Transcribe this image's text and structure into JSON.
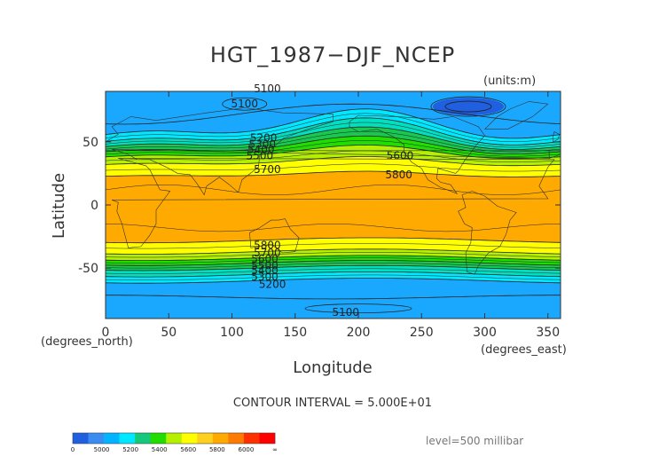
{
  "chart_data": {
    "type": "heatmap",
    "title": "HGT_1987−DJF_NCEP",
    "units": "(units:m)",
    "xlabel": "Longitude",
    "ylabel": "Latitude",
    "x_units": "(degrees_east)",
    "y_units": "(degrees_north)",
    "xlim": [
      0,
      360
    ],
    "ylim": [
      -90,
      90
    ],
    "x_ticks": [
      0,
      50,
      100,
      150,
      200,
      250,
      300,
      350
    ],
    "y_ticks": [
      50,
      0,
      -50
    ],
    "contour_interval_text": "CONTOUR INTERVAL = 5.000E+01",
    "level_text": "level=500 millibar",
    "contour_labels": [
      {
        "text": "5100",
        "lon": 128,
        "lat": 92
      },
      {
        "text": "5100",
        "lon": 110,
        "lat": 80
      },
      {
        "text": "5200",
        "lon": 125,
        "lat": 53
      },
      {
        "text": "5300",
        "lon": 124,
        "lat": 48
      },
      {
        "text": "5400",
        "lon": 123,
        "lat": 44
      },
      {
        "text": "5500",
        "lon": 122,
        "lat": 39
      },
      {
        "text": "5700",
        "lon": 128,
        "lat": 28
      },
      {
        "text": "5600",
        "lon": 233,
        "lat": 39
      },
      {
        "text": "5800",
        "lon": 232,
        "lat": 24
      },
      {
        "text": "5800",
        "lon": 128,
        "lat": -32
      },
      {
        "text": "5700",
        "lon": 128,
        "lat": -38
      },
      {
        "text": "5600",
        "lon": 126,
        "lat": -43
      },
      {
        "text": "5500",
        "lon": 126,
        "lat": -48
      },
      {
        "text": "5400",
        "lon": 126,
        "lat": -52
      },
      {
        "text": "5300",
        "lon": 126,
        "lat": -57
      },
      {
        "text": "5200",
        "lon": 132,
        "lat": -63
      },
      {
        "text": "5100",
        "lon": 190,
        "lat": -85
      }
    ],
    "colorbar": {
      "tick_labels": [
        "0",
        "5000",
        "5200",
        "5400",
        "5600",
        "5800",
        "6000",
        "∞"
      ],
      "colors": [
        "#1f5fe0",
        "#3a8cf0",
        "#00b4ff",
        "#00e8ff",
        "#16c97a",
        "#22dd00",
        "#b4f000",
        "#ffff00",
        "#ffd020",
        "#ffaa00",
        "#ff7a00",
        "#ff3000",
        "#ff0000"
      ]
    },
    "fill_colors": {
      "below_5000": "#1f5fe0",
      "5000_5200": "#1aa8ff",
      "5200_5300": "#00e8ff",
      "5300_5400": "#00e0c0",
      "5400_5500": "#18c850",
      "5500_5600": "#22dd00",
      "5600_5700": "#b4f000",
      "5700_5800": "#ffff00",
      "above_5800": "#ffaa00"
    }
  }
}
